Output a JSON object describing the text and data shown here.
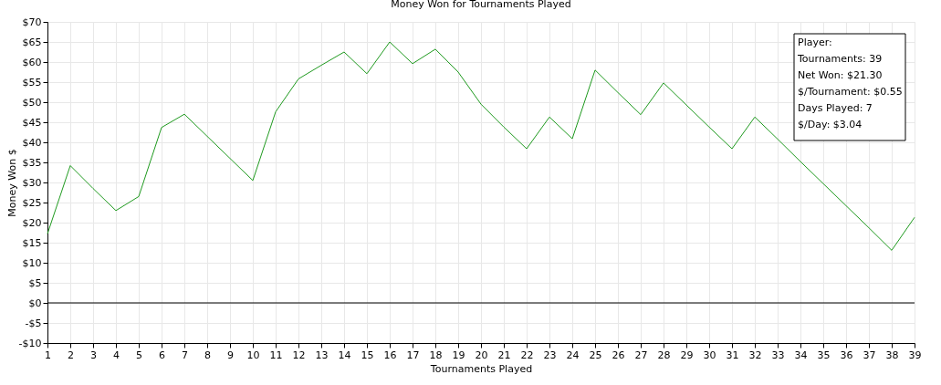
{
  "chart_data": {
    "type": "line",
    "title": "Money Won for Tournaments Played",
    "xlabel": "Tournaments Played",
    "ylabel": "Money Won $",
    "x": [
      1,
      2,
      3,
      4,
      5,
      6,
      7,
      8,
      9,
      10,
      11,
      12,
      13,
      14,
      15,
      16,
      17,
      18,
      19,
      20,
      21,
      22,
      23,
      24,
      25,
      26,
      27,
      28,
      29,
      30,
      31,
      32,
      33,
      34,
      35,
      36,
      37,
      38,
      39
    ],
    "series": [
      {
        "color": "#1f9a1f",
        "values": [
          17.2,
          34.2,
          28.5,
          23,
          26.5,
          43.7,
          47,
          41.5,
          36,
          30.5,
          47.6,
          55.8,
          59.2,
          62.5,
          57.1,
          65,
          59.6,
          63.2,
          57.5,
          49.5,
          43.8,
          38.4,
          46.3,
          40.9,
          58,
          52.4,
          46.9,
          54.8,
          49.3,
          43.8,
          38.4,
          46.3,
          40.8,
          35.2,
          29.7,
          24.2,
          18.7,
          13.1,
          21.3
        ]
      }
    ],
    "xlim": [
      1,
      39
    ],
    "xticks": [
      1,
      2,
      3,
      4,
      5,
      6,
      7,
      8,
      9,
      10,
      11,
      12,
      13,
      14,
      15,
      16,
      17,
      18,
      19,
      20,
      21,
      22,
      23,
      24,
      25,
      26,
      27,
      28,
      29,
      30,
      31,
      32,
      33,
      34,
      35,
      36,
      37,
      38,
      39
    ],
    "ylim": [
      -10,
      70
    ],
    "yticks": [
      {
        "value": -10,
        "label": "-$10"
      },
      {
        "value": -5,
        "label": "-$5"
      },
      {
        "value": 0,
        "label": "$0"
      },
      {
        "value": 5,
        "label": "$5"
      },
      {
        "value": 10,
        "label": "$10"
      },
      {
        "value": 15,
        "label": "$15"
      },
      {
        "value": 20,
        "label": "$20"
      },
      {
        "value": 25,
        "label": "$25"
      },
      {
        "value": 30,
        "label": "$30"
      },
      {
        "value": 35,
        "label": "$35"
      },
      {
        "value": 40,
        "label": "$40"
      },
      {
        "value": 45,
        "label": "$45"
      },
      {
        "value": 50,
        "label": "$50"
      },
      {
        "value": 55,
        "label": "$55"
      },
      {
        "value": 60,
        "label": "$60"
      },
      {
        "value": 65,
        "label": "$65"
      },
      {
        "value": 70,
        "label": "$70"
      }
    ],
    "ref_lines": [
      {
        "axis": "y",
        "value": 0,
        "color": "#000000"
      }
    ],
    "annotations": [
      "Player:",
      "Tournaments: 39",
      "Net Won: $21.30",
      "$/Tournament: $0.55",
      "Days Played: 7",
      "$/Day: $3.04"
    ],
    "grid": true,
    "marker": "none",
    "line_style": "solid"
  }
}
